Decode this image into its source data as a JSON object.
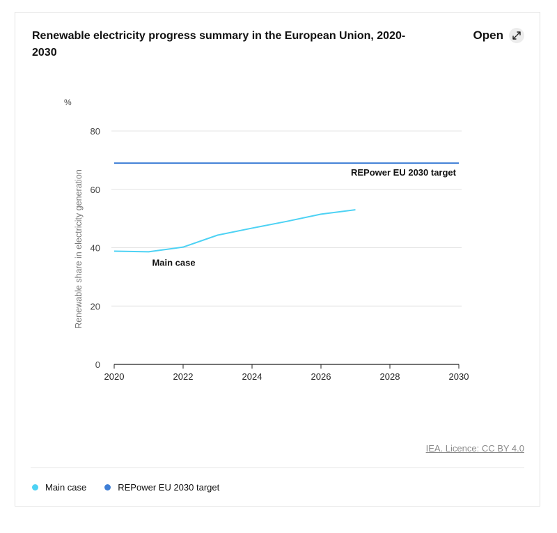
{
  "header": {
    "title": "Renewable electricity progress summary in the European Union, 2020-2030",
    "open_label": "Open"
  },
  "source": "IEA. Licence: CC BY 4.0",
  "icons": {
    "open": "expand-arrows-icon"
  },
  "chart_data": {
    "type": "line",
    "title": "Renewable electricity progress summary in the European Union, 2020-2030",
    "unit_label": "%",
    "ylabel": "Renewable share in electricity generation",
    "xlabel": "",
    "xlim": [
      2020,
      2030
    ],
    "ylim": [
      0,
      80
    ],
    "x_ticks": [
      2020,
      2022,
      2024,
      2026,
      2028,
      2030
    ],
    "y_ticks": [
      0,
      20,
      40,
      60,
      80
    ],
    "grid": true,
    "legend_position": "bottom-left",
    "series": [
      {
        "name": "Main case",
        "color": "#4dd2f4",
        "x": [
          2020,
          2021,
          2022,
          2023,
          2024,
          2025,
          2026,
          2027
        ],
        "values": [
          38.8,
          38.6,
          40.2,
          44.3,
          46.7,
          49.0,
          51.5,
          53.0
        ]
      },
      {
        "name": "REPower EU 2030 target",
        "color": "#3f7fd6",
        "x": [
          2020,
          2030
        ],
        "values": [
          69,
          69
        ]
      }
    ]
  }
}
